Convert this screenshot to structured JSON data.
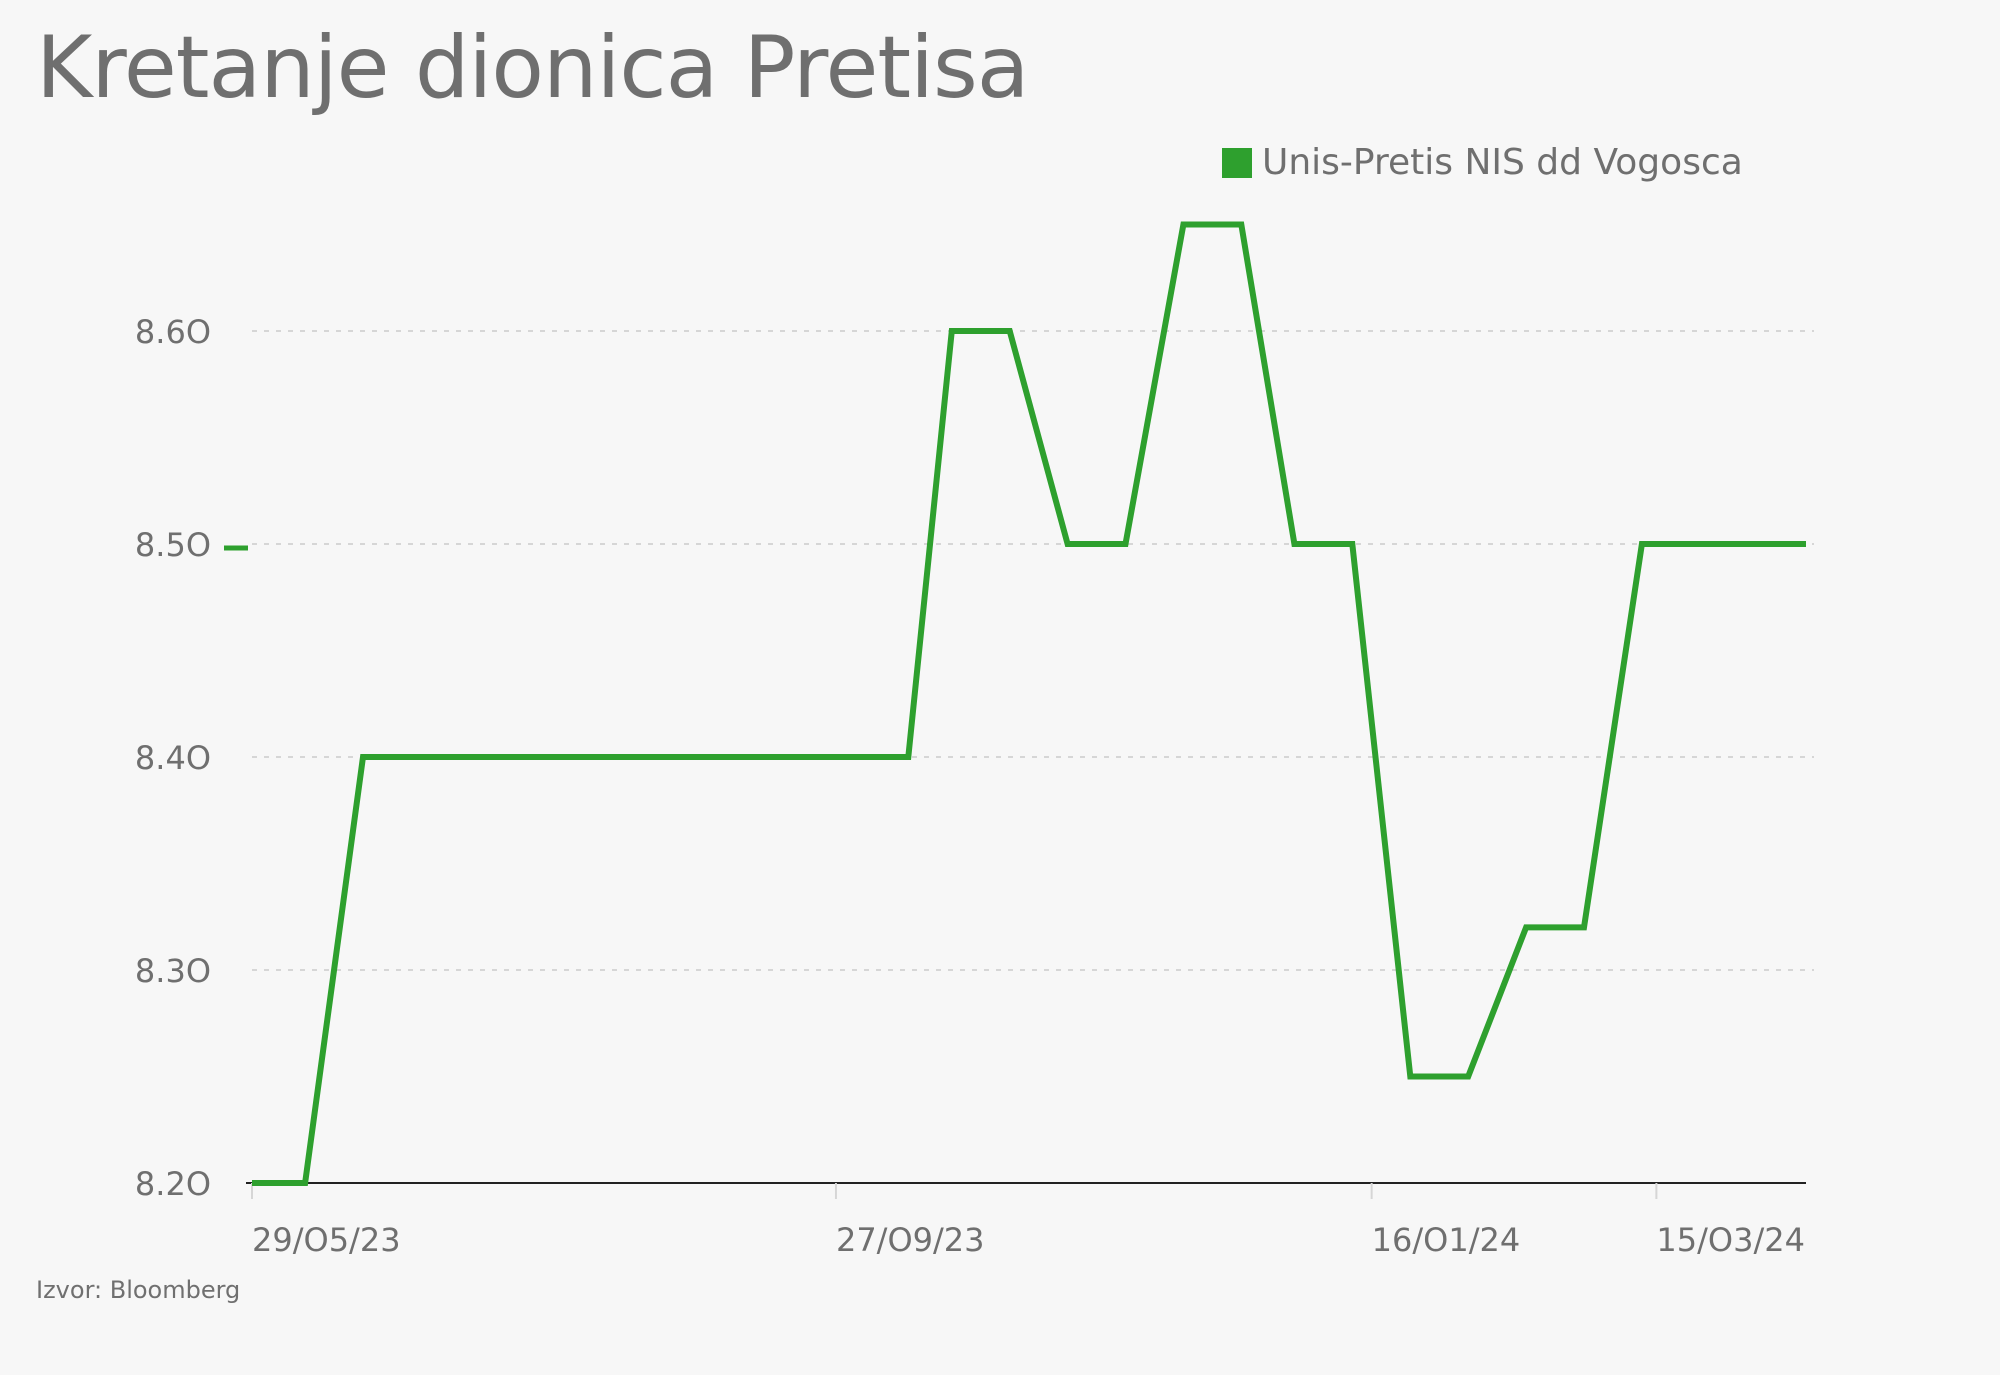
{
  "title": "Kretanje dionica Pretisa",
  "source": "Izvor: Bloomberg",
  "colors": {
    "series": "#2ea02e",
    "grid": "#d6d6d6",
    "axis": "#222222",
    "text": "#6f6f6f"
  },
  "chart_data": {
    "type": "line",
    "title": "Kretanje dionica Pretisa",
    "xlabel": "",
    "ylabel": "",
    "ylim": [
      8.2,
      8.65
    ],
    "yticks": [
      8.2,
      8.3,
      8.4,
      8.5,
      8.6
    ],
    "ytick_labels": [
      "8.2O",
      "8.3O",
      "8.4O",
      "8.5O",
      "8.6O"
    ],
    "xticks": [
      "2023-05-29",
      "2023-09-27",
      "2024-01-16",
      "2024-03-15"
    ],
    "xtick_labels": [
      "29/O5/23",
      "27/O9/23",
      "16/O1/24",
      "15/O3/24"
    ],
    "xlim": [
      "2023-05-29",
      "2024-04-15"
    ],
    "grid": true,
    "legend_position": "top-right",
    "last_value_marker": 8.5,
    "series": [
      {
        "name": "Unis-Pretis NIS dd Vogosca",
        "x": [
          "2023-05-29",
          "2023-06-09",
          "2023-06-21",
          "2023-06-30",
          "2023-07-15",
          "2023-08-15",
          "2023-09-15",
          "2023-10-12",
          "2023-10-21",
          "2023-11-02",
          "2023-11-14",
          "2023-11-26",
          "2023-12-08",
          "2023-12-20",
          "2023-12-31",
          "2024-01-12",
          "2024-01-24",
          "2024-02-05",
          "2024-02-17",
          "2024-02-29",
          "2024-03-12",
          "2024-03-30",
          "2024-04-15"
        ],
        "y": [
          8.2,
          8.2,
          8.4,
          8.4,
          8.4,
          8.4,
          8.4,
          8.4,
          8.6,
          8.6,
          8.5,
          8.5,
          8.65,
          8.65,
          8.5,
          8.5,
          8.25,
          8.25,
          8.32,
          8.32,
          8.5,
          8.5,
          8.5
        ]
      }
    ]
  }
}
